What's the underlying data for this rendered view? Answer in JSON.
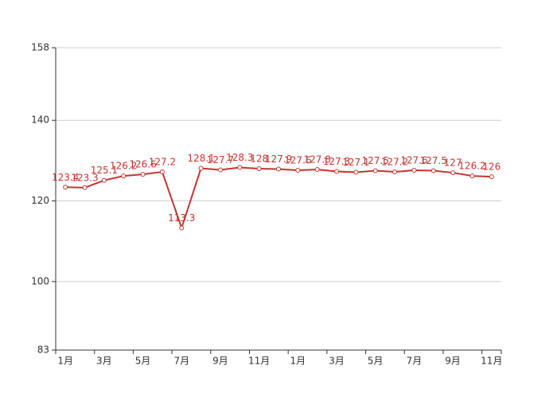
{
  "chart_data": {
    "type": "line",
    "categories": [
      "1月",
      null,
      "3月",
      null,
      "5月",
      null,
      "7月",
      null,
      "9月",
      null,
      "11月",
      null,
      "1月",
      null,
      "3月",
      null,
      "5月",
      null,
      "7月",
      null,
      "9月",
      null,
      "11月"
    ],
    "series": [
      {
        "color": "#c23531",
        "values": [
          123.4,
          123.3,
          125.1,
          126.2,
          126.6,
          127.2,
          113.3,
          128.1,
          127.7,
          128.3,
          128,
          127.9,
          127.6,
          127.8,
          127.3,
          127.1,
          127.5,
          127.2,
          127.6,
          127.5,
          127,
          126.2,
          126
        ]
      }
    ],
    "ylim": [
      83,
      158
    ],
    "yticks": [
      83,
      100,
      120,
      140,
      158
    ],
    "grid": true
  }
}
